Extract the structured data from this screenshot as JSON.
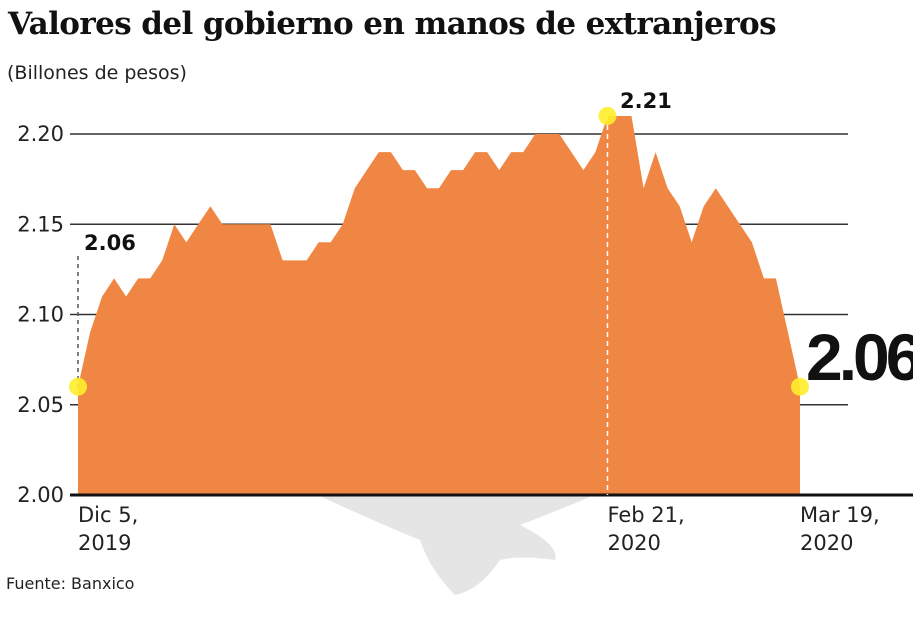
{
  "chart_data": {
    "type": "area",
    "title": "Valores del gobierno en manos de extranjeros",
    "subtitle": "(Billones de pesos)",
    "source": "Fuente: Banxico",
    "xlabel": "",
    "ylabel": "Billones de pesos",
    "ylim": [
      2.0,
      2.2
    ],
    "yticks": [
      "2.20",
      "2.15",
      "2.10",
      "2.05",
      "2.00"
    ],
    "ytick_values": [
      2.2,
      2.15,
      2.1,
      2.05,
      2.0
    ],
    "xticks": [
      {
        "line1": "Dic 5,",
        "line2": "2019",
        "index": 0
      },
      {
        "line1": "Feb 21,",
        "line2": "2020",
        "index": 44
      },
      {
        "line1": "Mar 19,",
        "line2": "2020",
        "index": 60
      }
    ],
    "grid": true,
    "fill_color": "#f08644",
    "marker_color": "#ffee2a",
    "values": [
      2.06,
      2.09,
      2.11,
      2.12,
      2.11,
      2.12,
      2.12,
      2.13,
      2.15,
      2.14,
      2.15,
      2.16,
      2.15,
      2.15,
      2.15,
      2.15,
      2.15,
      2.13,
      2.13,
      2.13,
      2.14,
      2.14,
      2.15,
      2.17,
      2.18,
      2.19,
      2.19,
      2.18,
      2.18,
      2.17,
      2.17,
      2.18,
      2.18,
      2.19,
      2.19,
      2.18,
      2.19,
      2.19,
      2.2,
      2.2,
      2.2,
      2.19,
      2.18,
      2.19,
      2.21,
      2.21,
      2.21,
      2.17,
      2.19,
      2.17,
      2.16,
      2.14,
      2.16,
      2.17,
      2.16,
      2.15,
      2.14,
      2.12,
      2.12,
      2.09,
      2.06
    ],
    "annotations": [
      {
        "label": "2.06",
        "index": 0,
        "value": 2.06,
        "style": "small"
      },
      {
        "label": "2.21",
        "index": 44,
        "value": 2.21,
        "style": "small"
      },
      {
        "label": "2.06",
        "index": 60,
        "value": 2.06,
        "style": "big"
      }
    ]
  }
}
